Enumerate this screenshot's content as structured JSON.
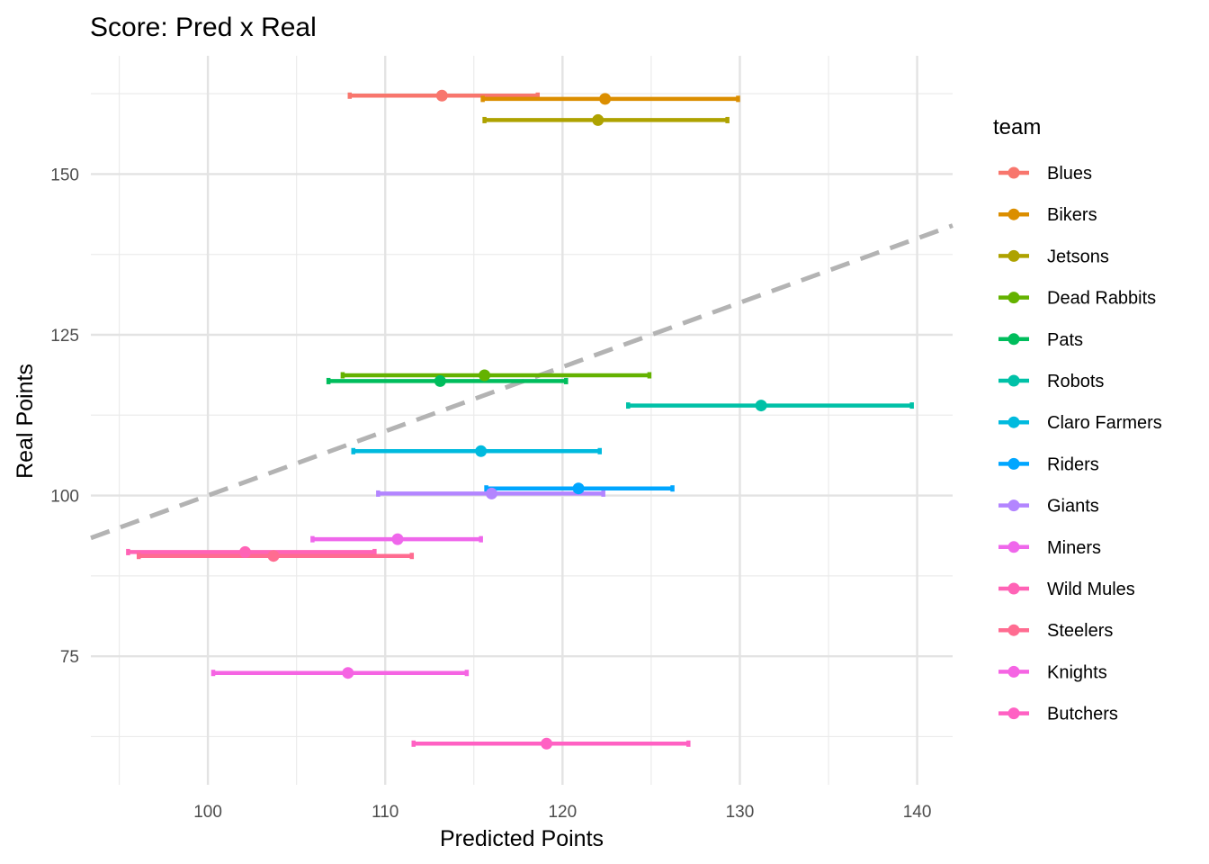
{
  "chart_data": {
    "type": "errorbar-scatter",
    "title": "Score: Pred x Real",
    "xlabel": "Predicted Points",
    "ylabel": "Real Points",
    "xlim": [
      93.4,
      142.0
    ],
    "ylim": [
      55.0,
      168.4
    ],
    "xticks": [
      100,
      110,
      120,
      130,
      140
    ],
    "yticks": [
      75,
      100,
      125,
      150
    ],
    "grid": true,
    "reference_line": {
      "slope": 1,
      "intercept": 0,
      "style": "dashed",
      "color": "#b3b3b3"
    },
    "legend": {
      "title": "team",
      "position": "right"
    },
    "series": [
      {
        "name": "Blues",
        "color": "#F8766D",
        "x": 113.2,
        "y": 162.2,
        "xmin": 108.0,
        "xmax": 118.6
      },
      {
        "name": "Bikers",
        "color": "#DB8E00",
        "x": 122.4,
        "y": 161.7,
        "xmin": 115.5,
        "xmax": 129.9
      },
      {
        "name": "Jetsons",
        "color": "#AEA200",
        "x": 122.0,
        "y": 158.4,
        "xmin": 115.6,
        "xmax": 129.3
      },
      {
        "name": "Dead Rabbits",
        "color": "#64B200",
        "x": 115.6,
        "y": 118.7,
        "xmin": 107.6,
        "xmax": 124.9
      },
      {
        "name": "Pats",
        "color": "#00BD5C",
        "x": 113.1,
        "y": 117.8,
        "xmin": 106.8,
        "xmax": 120.2
      },
      {
        "name": "Robots",
        "color": "#00C1A7",
        "x": 131.2,
        "y": 114.0,
        "xmin": 123.7,
        "xmax": 139.7
      },
      {
        "name": "Claro Farmers",
        "color": "#00BADE",
        "x": 115.4,
        "y": 106.9,
        "xmin": 108.2,
        "xmax": 122.1
      },
      {
        "name": "Riders",
        "color": "#00A6FF",
        "x": 120.9,
        "y": 101.1,
        "xmin": 115.7,
        "xmax": 126.2
      },
      {
        "name": "Giants",
        "color": "#B385FF",
        "x": 116.0,
        "y": 100.3,
        "xmin": 109.6,
        "xmax": 122.3
      },
      {
        "name": "Miners",
        "color": "#EF67EB",
        "x": 110.7,
        "y": 93.2,
        "xmin": 105.9,
        "xmax": 115.4
      },
      {
        "name": "Wild Mules",
        "color": "#FF63B6",
        "x": 102.1,
        "y": 91.2,
        "xmin": 95.5,
        "xmax": 109.4
      },
      {
        "name": "Steelers",
        "color": "#FF6C91",
        "x": 103.7,
        "y": 90.6,
        "xmin": 96.1,
        "xmax": 111.5
      },
      {
        "name": "Knights",
        "color": "#F564E3",
        "x": 107.9,
        "y": 72.4,
        "xmin": 100.3,
        "xmax": 114.6
      },
      {
        "name": "Butchers",
        "color": "#FF61C3",
        "x": 119.1,
        "y": 61.4,
        "xmin": 111.6,
        "xmax": 127.1
      }
    ]
  }
}
